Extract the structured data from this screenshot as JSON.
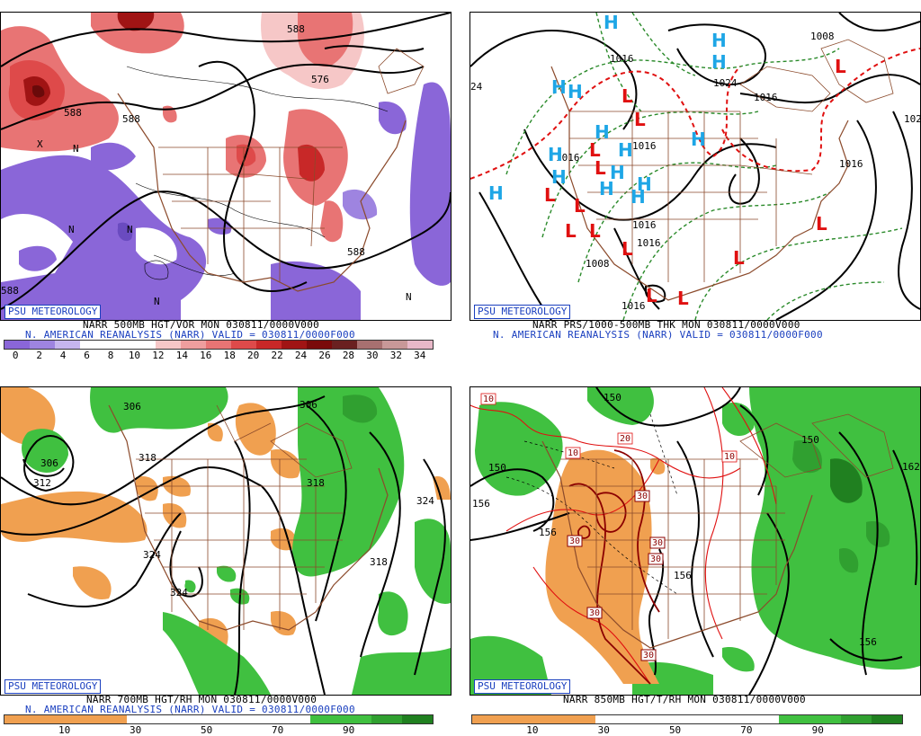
{
  "brand": "PSU METEOROLOGY",
  "panels": [
    {
      "id": "p1",
      "title1": "NARR 500MB HGT/VOR MON 030811/0000V000",
      "title2": "N. AMERICAN REANALYSIS (NARR) VALID = 030811/0000F000",
      "contour_labels": [
        "588",
        "576",
        "588",
        "588",
        "588",
        "588"
      ],
      "marker_labels": [
        "X",
        "N"
      ],
      "colorbar": {
        "colors": [
          "#8a66d8",
          "#9e84e0",
          "#c6b6ee",
          "#ffffff",
          "#ffffff",
          "#ffffff",
          "#f6c7c7",
          "#ee9e9e",
          "#e87474",
          "#de4a4a",
          "#c82828",
          "#a01414",
          "#7a0a0a",
          "#6a2020",
          "#a87070",
          "#c89898",
          "#e8b8c8"
        ],
        "ticks": [
          "0",
          "2",
          "4",
          "6",
          "8",
          "10",
          "12",
          "14",
          "16",
          "18",
          "20",
          "22",
          "24",
          "26",
          "28",
          "30",
          "32",
          "34"
        ]
      }
    },
    {
      "id": "p2",
      "title1": "NARR PRS/1000-500MB THK MON 030811/0000V000",
      "title2": "N. AMERICAN REANALYSIS (NARR) VALID = 030811/0000F000",
      "contour_labels": [
        "1008",
        "1016",
        "1024",
        "1016",
        "1016",
        "1016",
        "1016",
        "1016",
        "1016",
        "1008",
        "1016",
        "1016",
        "102",
        "24",
        "1016"
      ],
      "high_label": "H",
      "low_label": "L"
    },
    {
      "id": "p3",
      "title1": "NARR 700MB HGT/RH MON 030811/0000V000",
      "title2": "N. AMERICAN REANALYSIS (NARR) VALID = 030811/0000F000",
      "contour_labels": [
        "306",
        "306",
        "306",
        "312",
        "318",
        "318",
        "324",
        "324",
        "324",
        "318"
      ],
      "colorbar": {
        "colors": [
          "#f0a050",
          "#f0a050",
          "#f0a050",
          "#f0a050",
          "#ffffff",
          "#ffffff",
          "#ffffff",
          "#ffffff",
          "#ffffff",
          "#ffffff",
          "#40c040",
          "#40c040",
          "#30a030",
          "#208020"
        ],
        "ticks": [
          "10",
          "30",
          "50",
          "70",
          "90"
        ]
      }
    },
    {
      "id": "p4",
      "title1": "NARR 850MB HGT/T/RH MON 030811/0000V000",
      "contour_labels": [
        "150",
        "150",
        "150",
        "156",
        "156",
        "156",
        "156",
        "162",
        "156"
      ],
      "temp_labels": [
        "10",
        "10",
        "10",
        "20",
        "30",
        "30",
        "30",
        "30",
        "30",
        "30",
        "30"
      ],
      "colorbar": {
        "colors": [
          "#f0a050",
          "#f0a050",
          "#f0a050",
          "#f0a050",
          "#ffffff",
          "#ffffff",
          "#ffffff",
          "#ffffff",
          "#ffffff",
          "#ffffff",
          "#40c040",
          "#40c040",
          "#30a030",
          "#208020"
        ],
        "ticks": [
          "10",
          "30",
          "50",
          "70",
          "90"
        ]
      }
    }
  ]
}
